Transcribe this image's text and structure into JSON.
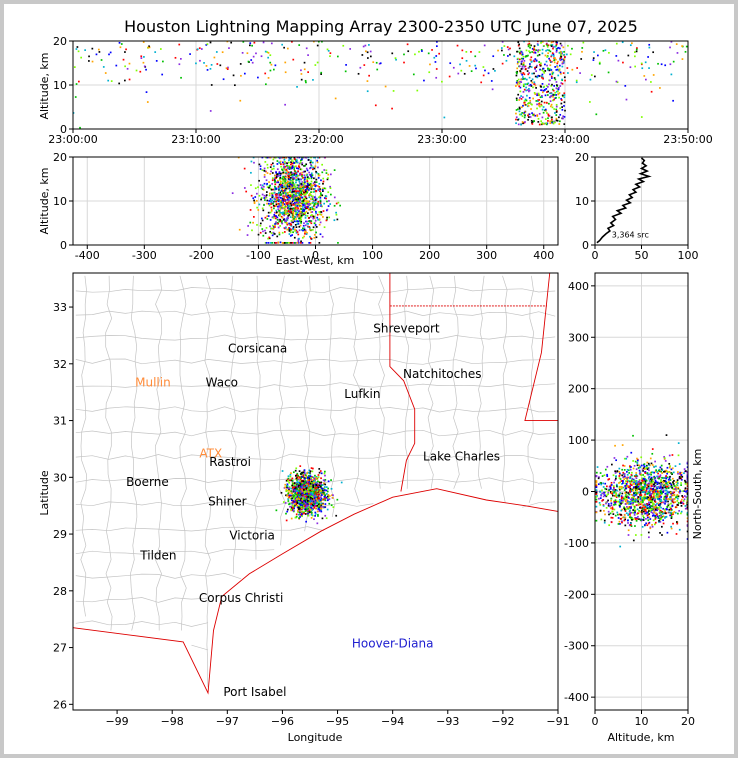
{
  "chart_data": [
    {
      "panel": "altitude-time",
      "type": "scatter",
      "title": "Houston Lightning Mapping Array 2300-2350 UTC June 07, 2025",
      "ylabel": "Altitude, km",
      "xticks": [
        "23:00:00",
        "23:10:00",
        "23:20:00",
        "23:30:00",
        "23:40:00",
        "23:50:00"
      ],
      "xlim": [
        "23:00:00",
        "23:50:00"
      ],
      "yticks": [
        0,
        10,
        20
      ],
      "ylim": [
        0,
        20
      ],
      "grid": true,
      "main_activity_window": [
        "23:36:00",
        "23:40:00"
      ]
    },
    {
      "panel": "east-west-altitude",
      "type": "scatter",
      "xlabel": "East-West, km",
      "ylabel": "Altitude, km",
      "xticks": [
        -400,
        -300,
        -200,
        -100,
        0,
        100,
        200,
        300,
        400
      ],
      "xlim": [
        -425,
        425
      ],
      "yticks": [
        0,
        10,
        20
      ],
      "ylim": [
        0,
        20
      ],
      "grid": true,
      "cluster_center_x_km": -40,
      "cluster_spread_x_km": 40
    },
    {
      "panel": "altitude-histogram",
      "type": "line",
      "annotation": "3,364 src",
      "xticks": [
        0,
        50,
        100
      ],
      "xlim": [
        0,
        100
      ],
      "yticks": [
        0,
        10,
        20
      ],
      "ylim": [
        0,
        20
      ],
      "grid": true,
      "profile": [
        {
          "count": 2,
          "alt": 0.5
        },
        {
          "count": 5,
          "alt": 1.0
        },
        {
          "count": 8,
          "alt": 1.8
        },
        {
          "count": 12,
          "alt": 2.6
        },
        {
          "count": 16,
          "alt": 3.2
        },
        {
          "count": 14,
          "alt": 3.8
        },
        {
          "count": 20,
          "alt": 4.4
        },
        {
          "count": 17,
          "alt": 5.0
        },
        {
          "count": 22,
          "alt": 5.8
        },
        {
          "count": 19,
          "alt": 6.5
        },
        {
          "count": 28,
          "alt": 7.2
        },
        {
          "count": 24,
          "alt": 7.8
        },
        {
          "count": 33,
          "alt": 8.4
        },
        {
          "count": 30,
          "alt": 9.0
        },
        {
          "count": 38,
          "alt": 9.6
        },
        {
          "count": 34,
          "alt": 10.2
        },
        {
          "count": 40,
          "alt": 10.8
        },
        {
          "count": 37,
          "alt": 11.4
        },
        {
          "count": 44,
          "alt": 12.0
        },
        {
          "count": 41,
          "alt": 12.6
        },
        {
          "count": 48,
          "alt": 13.2
        },
        {
          "count": 44,
          "alt": 13.8
        },
        {
          "count": 52,
          "alt": 14.4
        },
        {
          "count": 47,
          "alt": 15.0
        },
        {
          "count": 58,
          "alt": 15.6
        },
        {
          "count": 49,
          "alt": 16.2
        },
        {
          "count": 56,
          "alt": 16.8
        },
        {
          "count": 50,
          "alt": 17.4
        },
        {
          "count": 55,
          "alt": 18.0
        },
        {
          "count": 51,
          "alt": 18.6
        },
        {
          "count": 53,
          "alt": 19.2
        },
        {
          "count": 50,
          "alt": 19.8
        }
      ]
    },
    {
      "panel": "plan-view-map",
      "type": "scatter",
      "xlabel": "Longitude",
      "ylabel": "Latitude",
      "xticks": [
        -99,
        -98,
        -97,
        -96,
        -95,
        -94,
        -93,
        -92,
        -91
      ],
      "xlim": [
        -99.8,
        -91.0
      ],
      "yticks": [
        26,
        27,
        28,
        29,
        30,
        31,
        32,
        33
      ],
      "ylim": [
        25.9,
        33.6
      ],
      "cluster_center": [
        -95.55,
        29.7
      ],
      "cluster_spread_deg": [
        0.3,
        0.3
      ],
      "labels": [
        {
          "text": "Shreveport",
          "lon": -93.75,
          "lat": 32.55,
          "color": "#000000"
        },
        {
          "text": "Corsicana",
          "lon": -96.45,
          "lat": 32.2,
          "color": "#000000"
        },
        {
          "text": "Natchitoches",
          "lon": -93.1,
          "lat": 31.75,
          "color": "#000000"
        },
        {
          "text": "Mullin",
          "lon": -98.35,
          "lat": 31.6,
          "color": "#ff8c3a"
        },
        {
          "text": "Waco",
          "lon": -97.1,
          "lat": 31.6,
          "color": "#000000"
        },
        {
          "text": "Lufkin",
          "lon": -94.55,
          "lat": 31.4,
          "color": "#000000"
        },
        {
          "text": "Lake Charles",
          "lon": -92.75,
          "lat": 30.3,
          "color": "#000000"
        },
        {
          "text": "ATX",
          "lon": -97.3,
          "lat": 30.35,
          "color": "#ff8c3a"
        },
        {
          "text": "Rastroi",
          "lon": -96.95,
          "lat": 30.2,
          "color": "#000000"
        },
        {
          "text": "Boerne",
          "lon": -98.45,
          "lat": 29.85,
          "color": "#000000"
        },
        {
          "text": "Shiner",
          "lon": -97.0,
          "lat": 29.5,
          "color": "#000000"
        },
        {
          "text": "Victoria",
          "lon": -96.55,
          "lat": 28.9,
          "color": "#000000"
        },
        {
          "text": "Tilden",
          "lon": -98.25,
          "lat": 28.55,
          "color": "#000000"
        },
        {
          "text": "Corpus Christi",
          "lon": -96.75,
          "lat": 27.8,
          "color": "#000000"
        },
        {
          "text": "Hoover-Diana",
          "lon": -94.0,
          "lat": 27.0,
          "color": "#2020d0"
        },
        {
          "text": "Port Isabel",
          "lon": -96.5,
          "lat": 26.15,
          "color": "#000000"
        }
      ]
    },
    {
      "panel": "altitude-north-south",
      "type": "scatter",
      "xlabel": "Altitude, km",
      "ylabel": "North-South, km",
      "xticks": [
        0,
        10,
        20
      ],
      "xlim": [
        0,
        20
      ],
      "yticks": [
        -400,
        -300,
        -200,
        -100,
        0,
        100,
        200,
        300,
        400
      ],
      "ylim": [
        -425,
        425
      ],
      "grid": true,
      "cluster_center_y_km": -5,
      "cluster_spread_y_km": 40
    }
  ],
  "colors": {
    "source_palette": [
      "#0000ff",
      "#00c000",
      "#ff0000",
      "#ffa500",
      "#8a2be2",
      "#00b0d0",
      "#7fff00",
      "#000000"
    ],
    "state_border": "#dd0000",
    "county_line": "#c4c4c4",
    "grid": "#d8d8d8"
  }
}
